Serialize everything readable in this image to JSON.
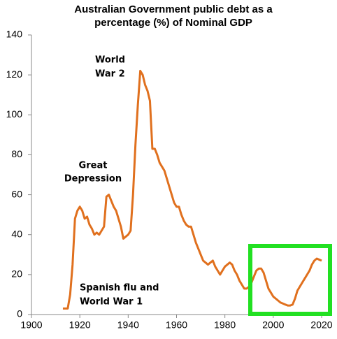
{
  "chart_data": {
    "type": "line",
    "title": [
      "Australian Government public debt as a",
      "percentage (%) of Nominal GDP"
    ],
    "annotations": [
      [
        "World",
        "War 2"
      ],
      [
        "Great",
        "Depression"
      ],
      [
        "Spanish flu and",
        "World War 1"
      ]
    ],
    "x": [
      1913,
      1914,
      1915,
      1916,
      1917,
      1918,
      1919,
      1920,
      1921,
      1922,
      1923,
      1924,
      1925,
      1926,
      1927,
      1928,
      1929,
      1930,
      1931,
      1932,
      1933,
      1934,
      1935,
      1936,
      1937,
      1938,
      1939,
      1940,
      1941,
      1942,
      1943,
      1944,
      1945,
      1946,
      1947,
      1948,
      1949,
      1950,
      1951,
      1952,
      1953,
      1954,
      1955,
      1956,
      1957,
      1958,
      1959,
      1960,
      1961,
      1962,
      1963,
      1964,
      1965,
      1966,
      1967,
      1968,
      1969,
      1970,
      1971,
      1972,
      1973,
      1974,
      1975,
      1976,
      1977,
      1978,
      1979,
      1980,
      1981,
      1982,
      1983,
      1984,
      1985,
      1986,
      1987,
      1988,
      1989,
      1990,
      1991,
      1992,
      1993,
      1994,
      1995,
      1996,
      1997,
      1998,
      1999,
      2000,
      2001,
      2002,
      2003,
      2004,
      2005,
      2006,
      2007,
      2008,
      2009,
      2010,
      2011,
      2012,
      2013,
      2014,
      2015,
      2016,
      2017,
      2018,
      2019,
      2020
    ],
    "series": [
      {
        "name": "Public debt",
        "color": "#e0701e",
        "values": [
          3,
          3,
          3,
          10,
          25,
          48,
          52,
          54,
          52,
          48,
          49,
          45,
          43,
          40,
          41,
          40,
          42,
          44,
          59,
          60,
          57,
          54,
          52,
          48,
          44,
          38,
          39,
          40,
          42,
          60,
          85,
          105,
          122,
          120,
          115,
          112,
          107,
          83,
          83,
          80,
          76,
          74,
          72,
          68,
          64,
          60,
          56,
          54,
          54,
          50,
          47,
          45,
          44,
          44,
          40,
          36,
          33,
          30,
          27,
          26,
          25,
          26,
          27,
          24,
          22,
          20,
          22,
          24,
          25,
          26,
          25,
          22,
          20,
          17,
          15,
          13,
          13,
          14,
          16,
          19,
          22,
          23,
          23,
          21,
          17,
          13,
          11,
          9,
          8,
          7,
          6,
          5.5,
          5,
          4.5,
          4.5,
          5,
          8,
          12,
          14,
          16,
          18,
          20,
          22,
          25,
          27,
          28,
          27.5,
          27
        ]
      }
    ],
    "xlim": [
      1900,
      2020
    ],
    "xticks": [
      1900,
      1920,
      1940,
      1960,
      1980,
      2000,
      2020
    ],
    "ylim": [
      0,
      140
    ],
    "yticks": [
      0,
      20,
      40,
      60,
      80,
      100,
      120,
      140
    ]
  }
}
